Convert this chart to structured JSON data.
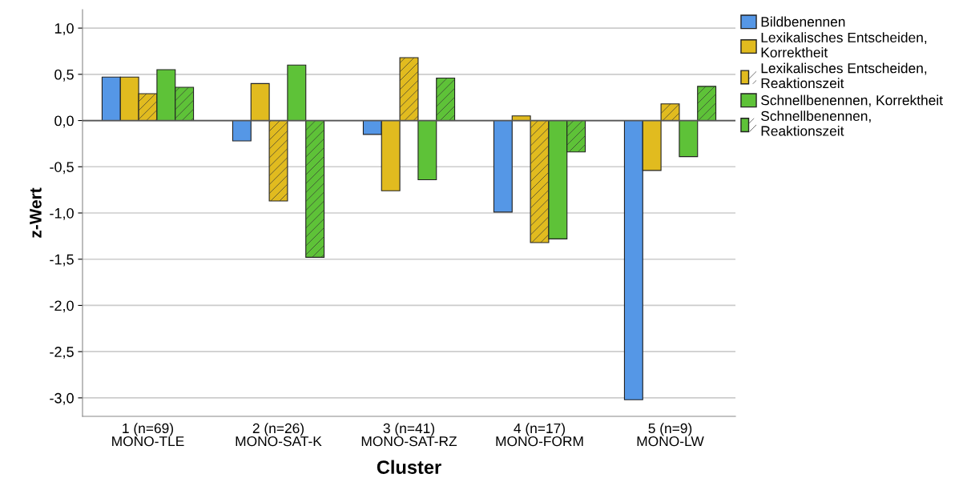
{
  "chart_data": {
    "type": "bar",
    "xlabel": "Cluster",
    "ylabel": "z-Wert",
    "categories": [
      "1 (n=69)\nMONO-TLE",
      "2 (n=26)\nMONO-SAT-K",
      "3 (n=41)\nMONO-SAT-RZ",
      "4 (n=17)\nMONO-FORM",
      "5 (n=9)\nMONO-LW"
    ],
    "series": [
      {
        "name": "Bildbenennen",
        "color": "#5597e6",
        "values": [
          0.47,
          -0.22,
          -0.15,
          -0.99,
          -3.02
        ]
      },
      {
        "name": "Lexikalisches Entscheiden,\nKorrektheit",
        "color": "#e1bb1f",
        "values": [
          0.47,
          0.4,
          -0.76,
          0.05,
          -0.54
        ]
      },
      {
        "name": "Lexikalisches Entscheiden,\nReaktionszeit",
        "color": "#e1bb1f",
        "values": [
          0.29,
          -0.87,
          0.68,
          -1.32,
          0.18
        ]
      },
      {
        "name": "Schnellbenennen, Korrektheit",
        "color": "#5ec238",
        "values": [
          0.55,
          0.6,
          -0.64,
          -1.28,
          -0.39
        ]
      },
      {
        "name": "Schnellbenennen,\nReaktionszeit",
        "color": "#5ec238",
        "values": [
          0.36,
          -1.48,
          0.46,
          -0.34,
          0.37
        ]
      }
    ],
    "ylim": [
      -3.2,
      1.2
    ],
    "yticks": [
      {
        "value": -3.0,
        "label": "-3,0"
      },
      {
        "value": -2.5,
        "label": "-2,5"
      },
      {
        "value": -2.0,
        "label": "-2,0"
      },
      {
        "value": -1.5,
        "label": "-1,5"
      },
      {
        "value": -1.0,
        "label": "-1,0"
      },
      {
        "value": -0.5,
        "label": "-0,5"
      },
      {
        "value": 0.0,
        "label": "0,0"
      },
      {
        "value": 0.5,
        "label": "0,5"
      },
      {
        "value": 1.0,
        "label": "1,0"
      }
    ],
    "ref_lines": [
      {
        "axis": "y",
        "value": 0,
        "color": "#555555"
      }
    ],
    "grid": "y",
    "legend": "top right"
  }
}
